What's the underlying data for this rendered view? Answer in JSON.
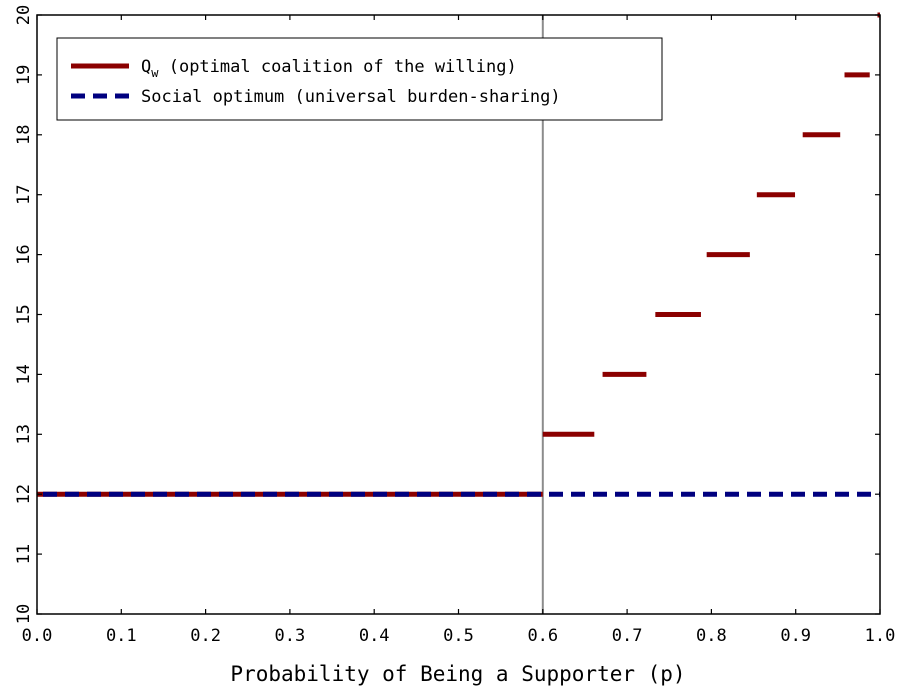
{
  "chart_data": {
    "type": "line",
    "xlabel": "Probability of Being a Supporter (p)",
    "ylabel": "",
    "xlim": [
      0.0,
      1.0
    ],
    "ylim": [
      10,
      20
    ],
    "x_ticks": [
      0.0,
      0.1,
      0.2,
      0.3,
      0.4,
      0.5,
      0.6,
      0.7,
      0.8,
      0.9,
      1.0
    ],
    "x_tick_labels": [
      "0.0",
      "0.1",
      "0.2",
      "0.3",
      "0.4",
      "0.5",
      "0.6",
      "0.7",
      "0.8",
      "0.9",
      "1.0"
    ],
    "y_ticks": [
      10,
      11,
      12,
      13,
      14,
      15,
      16,
      17,
      18,
      19,
      20
    ],
    "y_tick_labels": [
      "10",
      "11",
      "12",
      "13",
      "14",
      "15",
      "16",
      "17",
      "18",
      "19",
      "20"
    ],
    "grid": false,
    "legend_position": "top-left",
    "reference_line": {
      "x": 0.6,
      "color": "#8c8c8c"
    },
    "series": [
      {
        "name": "Qw (optimal coalition of the willing)",
        "legend_main": "Q",
        "legend_sub": "w",
        "legend_rest": " (optimal coalition of the willing)",
        "color": "#8b0000",
        "style": "solid",
        "segments": [
          {
            "x": [
              0.0,
              0.6
            ],
            "y": 12
          },
          {
            "x": [
              0.6,
              0.6611
            ],
            "y": 13
          },
          {
            "x": [
              0.6709,
              0.7229
            ],
            "y": 14
          },
          {
            "x": [
              0.7335,
              0.7876
            ],
            "y": 15
          },
          {
            "x": [
              0.7944,
              0.8456
            ],
            "y": 16
          },
          {
            "x": [
              0.8539,
              0.8992
            ],
            "y": 17
          },
          {
            "x": [
              0.9083,
              0.9528
            ],
            "y": 18
          },
          {
            "x": [
              0.9579,
              0.9878
            ],
            "y": 19
          },
          {
            "x": [
              0.997,
              1.0
            ],
            "y": 20
          }
        ]
      },
      {
        "name": "Social optimum (universal burden-sharing)",
        "color": "#00007f",
        "style": "dashed",
        "segments": [
          {
            "x": [
              0.0,
              1.0
            ],
            "y": 12
          }
        ]
      }
    ]
  }
}
